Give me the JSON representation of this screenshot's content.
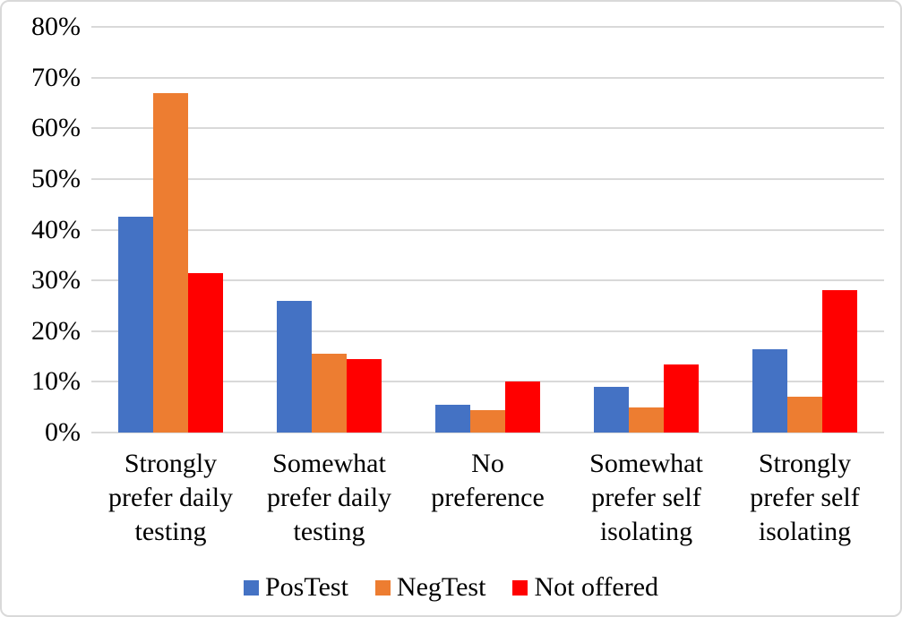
{
  "chart_data": {
    "type": "bar",
    "title": "",
    "categories": [
      "Strongly prefer daily testing",
      "Somewhat prefer daily testing",
      "No preference",
      "Somewhat prefer self isolating",
      "Strongly prefer self isolating"
    ],
    "category_label_lines": [
      [
        "Strongly",
        "prefer daily",
        "testing"
      ],
      [
        "Somewhat",
        "prefer daily",
        "testing"
      ],
      [
        "No",
        "preference"
      ],
      [
        "Somewhat",
        "prefer self",
        "isolating"
      ],
      [
        "Strongly",
        "prefer self",
        "isolating"
      ]
    ],
    "series": [
      {
        "name": "PosTest",
        "color": "#4472C4",
        "values": [
          42.5,
          26,
          5.5,
          9,
          16.5
        ]
      },
      {
        "name": "NegTest",
        "color": "#ED7D31",
        "values": [
          67,
          15.5,
          4.5,
          5,
          7
        ]
      },
      {
        "name": "Not offered",
        "color": "#FF0000",
        "values": [
          31.5,
          14.5,
          10,
          13.5,
          28
        ]
      }
    ],
    "xlabel": "",
    "ylabel": "",
    "ylim": [
      0,
      80
    ],
    "y_tick_step": 10,
    "y_tick_labels": [
      "0%",
      "10%",
      "20%",
      "30%",
      "40%",
      "50%",
      "60%",
      "70%",
      "80%"
    ],
    "grid": true,
    "legend_position": "bottom"
  },
  "colors": {
    "gridline": "#D9D9D9",
    "border": "#D9D9D9",
    "text": "#000000",
    "background": "#FFFFFF"
  }
}
